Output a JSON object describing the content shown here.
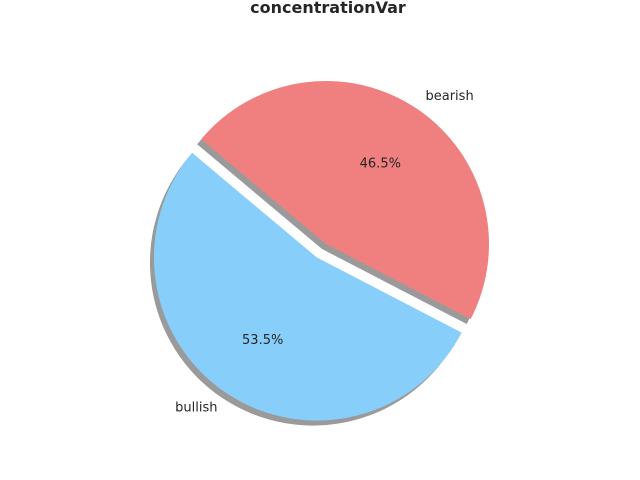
{
  "chart_data": {
    "type": "pie",
    "title": "concentrationVar",
    "labels": [
      "bullish",
      "bearish"
    ],
    "values": [
      53.5,
      46.5
    ],
    "percent_labels": [
      "53.5%",
      "46.5%"
    ],
    "colors": [
      "#87cefa",
      "#f08080"
    ],
    "shadow_color": "#9a9a9a",
    "shadow": true,
    "explode": [
      0.1,
      0
    ],
    "start_angle_deg": 140,
    "legend": "none"
  }
}
